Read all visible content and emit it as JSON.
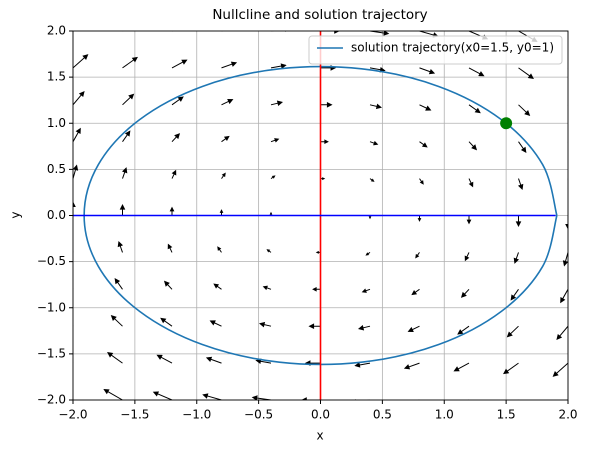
{
  "chart_data": {
    "type": "line",
    "title": "Nullcline and solution trajectory",
    "xlabel": "x",
    "ylabel": "y",
    "xlim": [
      -2,
      2
    ],
    "ylim": [
      -2,
      2
    ],
    "xticks": [
      {
        "value": -2,
        "label": "−2.0"
      },
      {
        "value": -1.5,
        "label": "−1.5"
      },
      {
        "value": -1,
        "label": "−1.0"
      },
      {
        "value": -0.5,
        "label": "−0.5"
      },
      {
        "value": 0,
        "label": "0.0"
      },
      {
        "value": 0.5,
        "label": "0.5"
      },
      {
        "value": 1,
        "label": "1.0"
      },
      {
        "value": 1.5,
        "label": "1.5"
      },
      {
        "value": 2,
        "label": "2.0"
      }
    ],
    "yticks": [
      {
        "value": -2,
        "label": "−2.0"
      },
      {
        "value": -1.5,
        "label": "−1.5"
      },
      {
        "value": -1,
        "label": "−1.0"
      },
      {
        "value": -0.5,
        "label": "−0.5"
      },
      {
        "value": 0,
        "label": "0.0"
      },
      {
        "value": 0.5,
        "label": "0.5"
      },
      {
        "value": 1,
        "label": "1.0"
      },
      {
        "value": 1.5,
        "label": "1.5"
      },
      {
        "value": 2,
        "label": "2.0"
      }
    ],
    "grid": true,
    "legend": "upper right",
    "series": [
      {
        "name": "solution trajectory(x0=1.5, y0=1)",
        "color": "#1f77b4",
        "x": [
          1.91,
          1.795,
          1.463,
          0.955,
          0.332,
          -0.332,
          -0.955,
          -1.463,
          -1.795,
          -1.91,
          -1.795,
          -1.463,
          -0.955,
          -0.332,
          0.332,
          0.955,
          1.463,
          1.795,
          1.91
        ],
        "y": [
          0,
          0.552,
          1.038,
          1.399,
          1.59,
          1.59,
          1.399,
          1.038,
          0.552,
          0,
          -0.552,
          -1.038,
          -1.399,
          -1.59,
          -1.59,
          -1.399,
          -1.038,
          -0.552,
          0
        ]
      },
      {
        "color": "red",
        "x": [
          0,
          0
        ],
        "y": [
          -2,
          2
        ]
      },
      {
        "color": "blue",
        "x": [
          -2,
          1.9
        ],
        "y": [
          0,
          0
        ]
      }
    ],
    "points": [
      {
        "color": "green",
        "x": 1.5,
        "y": 1
      }
    ],
    "quiver": {
      "color": "black",
      "x": [
        -2,
        -1.6,
        -1.2,
        -0.8,
        -0.4,
        0,
        0.4,
        0.8,
        1.2,
        1.6,
        2
      ],
      "y": [
        -2,
        -1.6,
        -1.2,
        -0.8,
        -0.4,
        0,
        0.4,
        0.8,
        1.2,
        1.6,
        2
      ],
      "u": [
        -2.8,
        -2.24,
        -1.68,
        -1.12,
        -0.56,
        0,
        0.56,
        1.12,
        1.68,
        2.24,
        2.8
      ],
      "v": [
        2,
        1.6,
        1.2,
        0.8,
        0.4,
        0,
        -0.4,
        -0.8,
        -1.2,
        -1.6,
        -2
      ]
    }
  }
}
